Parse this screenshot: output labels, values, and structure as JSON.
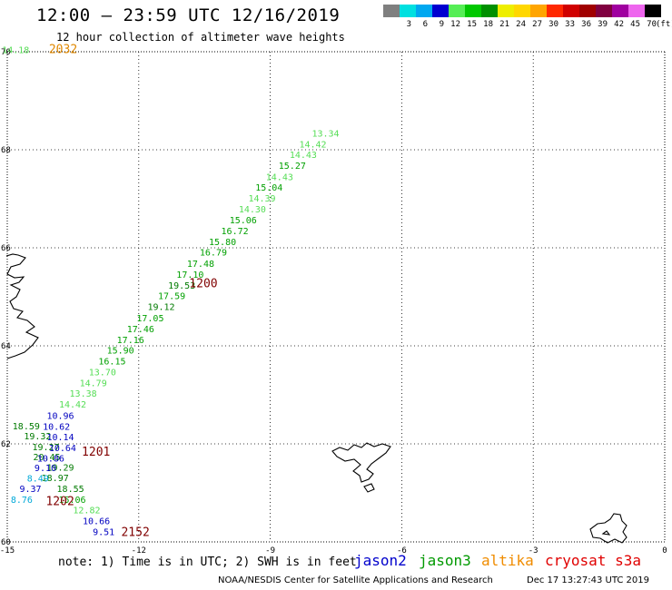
{
  "header": {
    "title": "12:00 — 23:59 UTC 12/16/2019",
    "subtitle": "12 hour collection of altimeter wave heights"
  },
  "scale": {
    "unit": "(ft)",
    "swatches": [
      {
        "label": "",
        "color": "#7f7f7f"
      },
      {
        "label": "3",
        "color": "#00e0e0"
      },
      {
        "label": "6",
        "color": "#00a8f0"
      },
      {
        "label": "9",
        "color": "#0000d0"
      },
      {
        "label": "12",
        "color": "#55ee55"
      },
      {
        "label": "15",
        "color": "#00c800"
      },
      {
        "label": "18",
        "color": "#009000"
      },
      {
        "label": "21",
        "color": "#eeee00"
      },
      {
        "label": "24",
        "color": "#ffd700"
      },
      {
        "label": "27",
        "color": "#ffa500"
      },
      {
        "label": "30",
        "color": "#ff2800"
      },
      {
        "label": "33",
        "color": "#d00000"
      },
      {
        "label": "36",
        "color": "#a00000"
      },
      {
        "label": "39",
        "color": "#800040"
      },
      {
        "label": "42",
        "color": "#a000a0"
      },
      {
        "label": "45",
        "color": "#ee66ee"
      },
      {
        "label": "70",
        "color": "#000000"
      }
    ]
  },
  "axes": {
    "x_ticks": [
      "-15",
      "-12",
      "-9",
      "-6",
      "-3",
      "0"
    ],
    "y_ticks": [
      "70",
      "68",
      "66",
      "64",
      "62",
      "60"
    ]
  },
  "colors": {
    "light_green": "#55dd55",
    "green": "#00a000",
    "dark_green": "#007a00",
    "blue": "#0000c0",
    "cyan": "#00a8d8",
    "time_label": "#800000",
    "top_time": "#e08800",
    "land_outline": "#000000"
  },
  "observations": [
    {
      "lon": -15.12,
      "lat": 69.97,
      "v": "14.18",
      "c": "light_green"
    },
    {
      "lon": -8.05,
      "lat": 68.27,
      "v": "13.34",
      "c": "light_green"
    },
    {
      "lon": -8.34,
      "lat": 68.05,
      "v": "14.42",
      "c": "light_green"
    },
    {
      "lon": -8.56,
      "lat": 67.83,
      "v": "14.43",
      "c": "light_green"
    },
    {
      "lon": -8.81,
      "lat": 67.61,
      "v": "15.27",
      "c": "green"
    },
    {
      "lon": -9.1,
      "lat": 67.38,
      "v": "14.43",
      "c": "light_green"
    },
    {
      "lon": -9.34,
      "lat": 67.17,
      "v": "15.04",
      "c": "green"
    },
    {
      "lon": -9.5,
      "lat": 66.94,
      "v": "14.39",
      "c": "light_green"
    },
    {
      "lon": -9.72,
      "lat": 66.72,
      "v": "14.30",
      "c": "light_green"
    },
    {
      "lon": -9.93,
      "lat": 66.5,
      "v": "15.06",
      "c": "green"
    },
    {
      "lon": -10.12,
      "lat": 66.28,
      "v": "16.72",
      "c": "green"
    },
    {
      "lon": -10.4,
      "lat": 66.06,
      "v": "15.80",
      "c": "green"
    },
    {
      "lon": -10.61,
      "lat": 65.84,
      "v": "16.79",
      "c": "green"
    },
    {
      "lon": -10.9,
      "lat": 65.61,
      "v": "17.48",
      "c": "green"
    },
    {
      "lon": -11.14,
      "lat": 65.39,
      "v": "17.10",
      "c": "green"
    },
    {
      "lon": -11.33,
      "lat": 65.17,
      "v": "19.53",
      "c": "dark_green"
    },
    {
      "lon": -11.56,
      "lat": 64.95,
      "v": "17.59",
      "c": "green"
    },
    {
      "lon": -11.8,
      "lat": 64.73,
      "v": "19.12",
      "c": "dark_green"
    },
    {
      "lon": -12.05,
      "lat": 64.5,
      "v": "17.05",
      "c": "green"
    },
    {
      "lon": -12.27,
      "lat": 64.28,
      "v": "17.46",
      "c": "green"
    },
    {
      "lon": -12.5,
      "lat": 64.06,
      "v": "17.16",
      "c": "green"
    },
    {
      "lon": -12.73,
      "lat": 63.84,
      "v": "15.90",
      "c": "green"
    },
    {
      "lon": -12.92,
      "lat": 63.62,
      "v": "16.15",
      "c": "green"
    },
    {
      "lon": -13.14,
      "lat": 63.4,
      "v": "13.70",
      "c": "light_green"
    },
    {
      "lon": -13.35,
      "lat": 63.18,
      "v": "14.79",
      "c": "light_green"
    },
    {
      "lon": -13.58,
      "lat": 62.96,
      "v": "13.38",
      "c": "light_green"
    },
    {
      "lon": -13.82,
      "lat": 62.74,
      "v": "14.42",
      "c": "light_green"
    },
    {
      "lon": -14.1,
      "lat": 62.51,
      "v": "10.96",
      "c": "blue"
    },
    {
      "lon": -14.88,
      "lat": 62.3,
      "v": "18.59",
      "c": "dark_green"
    },
    {
      "lon": -14.19,
      "lat": 62.29,
      "v": "10.62",
      "c": "blue"
    },
    {
      "lon": -14.62,
      "lat": 62.09,
      "v": "19.32",
      "c": "dark_green"
    },
    {
      "lon": -14.1,
      "lat": 62.07,
      "v": "10.14",
      "c": "blue"
    },
    {
      "lon": -14.43,
      "lat": 61.87,
      "v": "19.27",
      "c": "dark_green"
    },
    {
      "lon": -14.05,
      "lat": 61.85,
      "v": "10.64",
      "c": "blue"
    },
    {
      "lon": -14.41,
      "lat": 61.67,
      "v": "20.45",
      "c": "dark_green"
    },
    {
      "lon": -14.32,
      "lat": 61.64,
      "v": "10.86",
      "c": "blue"
    },
    {
      "lon": -14.1,
      "lat": 61.45,
      "v": "19.29",
      "c": "dark_green"
    },
    {
      "lon": -14.38,
      "lat": 61.44,
      "v": "9.10",
      "c": "blue"
    },
    {
      "lon": -14.22,
      "lat": 61.24,
      "v": "18.97",
      "c": "dark_green"
    },
    {
      "lon": -14.55,
      "lat": 61.23,
      "v": "8.49",
      "c": "cyan"
    },
    {
      "lon": -13.87,
      "lat": 61.02,
      "v": "18.55",
      "c": "dark_green"
    },
    {
      "lon": -14.72,
      "lat": 61.02,
      "v": "9.37",
      "c": "blue"
    },
    {
      "lon": -13.83,
      "lat": 60.8,
      "v": "15.06",
      "c": "green"
    },
    {
      "lon": -14.92,
      "lat": 60.8,
      "v": "8.76",
      "c": "cyan"
    },
    {
      "lon": -13.5,
      "lat": 60.58,
      "v": "12.82",
      "c": "light_green"
    },
    {
      "lon": -13.28,
      "lat": 60.36,
      "v": "10.66",
      "c": "blue"
    },
    {
      "lon": -13.05,
      "lat": 60.14,
      "v": "9.51",
      "c": "blue"
    }
  ],
  "time_labels": [
    {
      "lon": -14.05,
      "lat": 69.97,
      "t": "2032",
      "c": "top_time"
    },
    {
      "lon": -10.85,
      "lat": 65.19,
      "t": "1200",
      "c": "time_label"
    },
    {
      "lon": -13.3,
      "lat": 61.76,
      "t": "1201",
      "c": "time_label"
    },
    {
      "lon": -14.12,
      "lat": 60.75,
      "t": "1202",
      "c": "time_label"
    },
    {
      "lon": -12.4,
      "lat": 60.12,
      "t": "2152",
      "c": "time_label"
    }
  ],
  "footer": {
    "note": "note: 1) Time is in UTC; 2) SWH is in feet",
    "satellites": [
      {
        "name": "jason2",
        "color": "#0000cc"
      },
      {
        "name": "jason3",
        "color": "#009900"
      },
      {
        "name": "altika",
        "color": "#f08c00"
      },
      {
        "name": "cryosat s3a",
        "color": "#e00000"
      }
    ],
    "credit": "NOAA/NESDIS Center for Satellite Applications and Research",
    "timestamp": "Dec 17 13:27:43 UTC 2019"
  }
}
